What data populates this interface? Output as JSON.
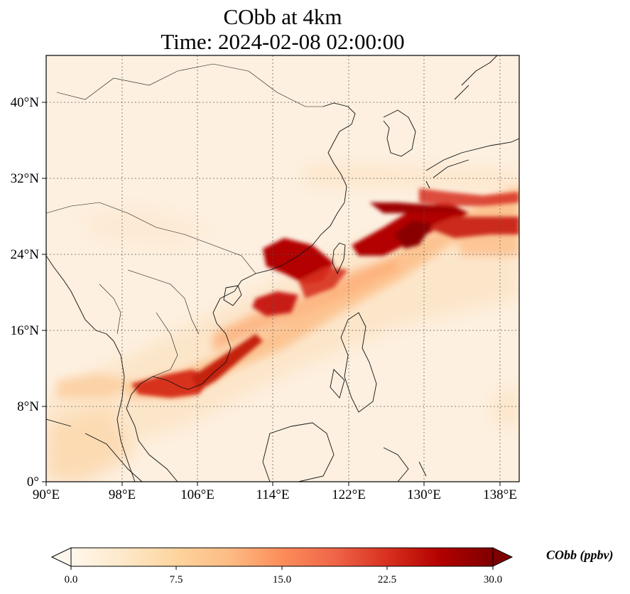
{
  "title": {
    "line1": "CObb at 4km",
    "line2": "Time: 2024-02-08 02:00:00"
  },
  "map": {
    "projection": "PlateCarree",
    "lon_range": [
      90,
      139
    ],
    "lat_range": [
      0,
      45
    ],
    "gridlines": "dotted",
    "lon_ticks": [
      "90°E",
      "98°E",
      "106°E",
      "114°E",
      "122°E",
      "130°E",
      "138°E"
    ],
    "lat_ticks": [
      "0°",
      "8°N",
      "16°N",
      "24°N",
      "32°N",
      "40°N"
    ],
    "colormap": "OrRd",
    "background_value": "near zero"
  },
  "colorbar": {
    "label": "CObb (ppbv)",
    "range": [
      0,
      30
    ],
    "extend": "both",
    "ticks": [
      "0.0",
      "7.5",
      "15.0",
      "22.5",
      "30.0"
    ],
    "colors": [
      "#fff7ec",
      "#fee8c8",
      "#fdd49e",
      "#fdbb84",
      "#fc8d59",
      "#ef6548",
      "#d7301f",
      "#b30000",
      "#7f0000"
    ]
  },
  "plumes": [
    {
      "region": "Gulf of Tonkin / Pearl River to Taiwan band",
      "level": "22.5–30"
    },
    {
      "region": "Southern Vietnam / Gulf of Thailand",
      "level": "15–25"
    },
    {
      "region": "East China Sea to south of Japan",
      "level": "22.5–30"
    }
  ]
}
